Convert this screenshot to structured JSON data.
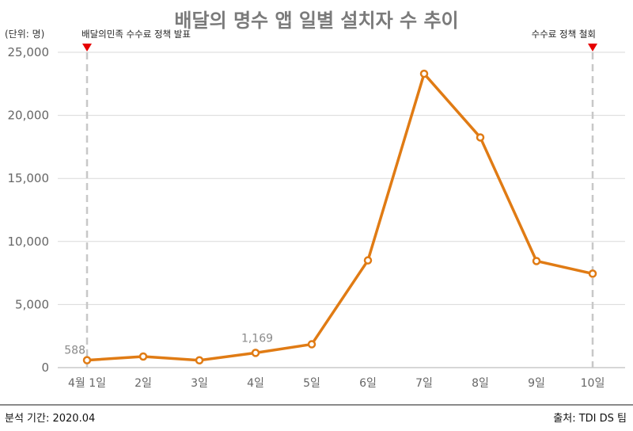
{
  "title": "배달의 명수 앱 일별 설치자 수 추이",
  "unit_label": "(단위: 명)",
  "footer": {
    "period": "분석 기간: 2020.04",
    "source": "출처: TDI DS 팀"
  },
  "colors": {
    "line": "#e07b14",
    "marker_fill": "#ffffff",
    "event_marker": "#e60000",
    "event_line": "#c8c8c8",
    "grid": "#d9d9d9",
    "axis": "#bfbfbf"
  },
  "chart_data": {
    "type": "line",
    "categories": [
      "4월 1일",
      "2일",
      "3일",
      "4일",
      "5일",
      "6일",
      "7일",
      "8일",
      "9일",
      "10일"
    ],
    "series": [
      {
        "values": [
          588,
          880,
          580,
          1169,
          1850,
          8500,
          23300,
          18250,
          8450,
          7450
        ]
      }
    ],
    "ylim": [
      0,
      25000
    ],
    "yticks": [
      "0",
      "5,000",
      "10,000",
      "15,000",
      "20,000",
      "25,000"
    ],
    "ytick_values": [
      0,
      5000,
      10000,
      15000,
      20000,
      25000
    ],
    "grid": true,
    "data_labels": [
      {
        "index": 0,
        "text": "588"
      },
      {
        "index": 3,
        "text": "1,169"
      }
    ],
    "events": [
      {
        "index": 0,
        "label": "배달의민족 수수료 정책 발표"
      },
      {
        "index": 9,
        "label": "수수료 정책 철회"
      }
    ]
  }
}
